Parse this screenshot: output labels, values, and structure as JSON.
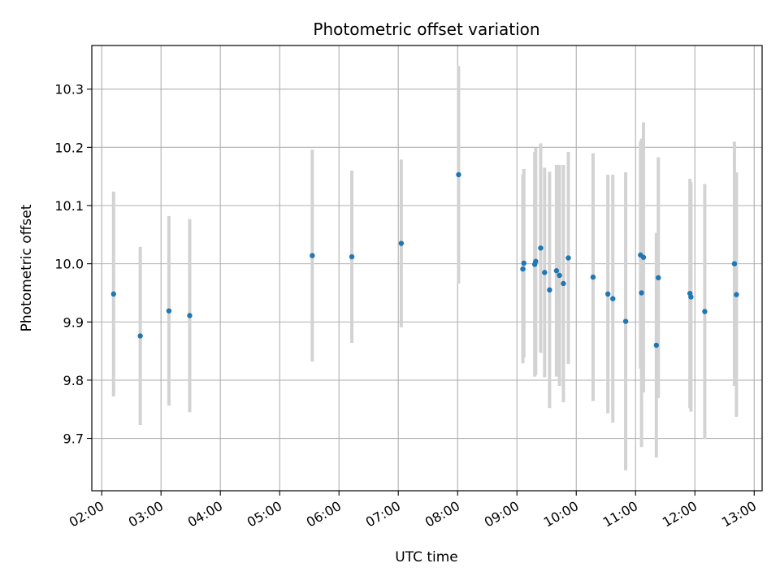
{
  "chart_data": {
    "type": "scatter",
    "title": "Photometric offset variation",
    "xlabel": "UTC time",
    "ylabel": "Photometric offset",
    "grid": true,
    "xlim": [
      "01:50",
      "13:08"
    ],
    "ylim": [
      9.61,
      10.375
    ],
    "xticks": [
      "02:00",
      "03:00",
      "04:00",
      "05:00",
      "06:00",
      "07:00",
      "08:00",
      "09:00",
      "10:00",
      "11:00",
      "12:00",
      "13:00"
    ],
    "yticks": [
      9.7,
      9.8,
      9.9,
      10.0,
      10.1,
      10.2,
      10.3
    ],
    "ytick_labels": [
      "9.7",
      "9.8",
      "9.9",
      "10.0",
      "10.1",
      "10.2",
      "10.3"
    ],
    "colors": {
      "points": "#1f77b4",
      "errorbars": "#d3d3d3",
      "grid": "#b0b0b0"
    },
    "series": [
      {
        "x": [
          "02:12",
          "02:39",
          "03:08",
          "03:29",
          "05:33",
          "06:13",
          "07:03",
          "08:01",
          "09:06",
          "09:07",
          "09:18",
          "09:19",
          "09:24",
          "09:28",
          "09:33",
          "09:40",
          "09:43",
          "09:47",
          "09:52",
          "10:17",
          "10:32",
          "10:37",
          "10:50",
          "11:05",
          "11:06",
          "11:08",
          "11:21",
          "11:23",
          "11:55",
          "11:56",
          "12:10",
          "12:40",
          "12:42"
        ],
        "y": [
          9.948,
          9.876,
          9.919,
          9.911,
          10.014,
          10.012,
          10.035,
          10.153,
          9.991,
          10.001,
          9.999,
          10.004,
          10.027,
          9.985,
          9.955,
          9.988,
          9.98,
          9.966,
          10.01,
          9.977,
          9.948,
          9.94,
          9.901,
          10.015,
          9.95,
          10.011,
          9.86,
          9.976,
          9.949,
          9.943,
          9.918,
          10.0,
          9.947
        ],
        "err": [
          0.176,
          0.153,
          0.163,
          0.166,
          0.182,
          0.148,
          0.144,
          0.187,
          0.162,
          0.162,
          0.193,
          0.195,
          0.18,
          0.18,
          0.203,
          0.182,
          0.19,
          0.204,
          0.182,
          0.213,
          0.205,
          0.213,
          0.256,
          0.195,
          0.265,
          0.232,
          0.193,
          0.207,
          0.197,
          0.197,
          0.219,
          0.21,
          0.21
        ]
      }
    ]
  }
}
